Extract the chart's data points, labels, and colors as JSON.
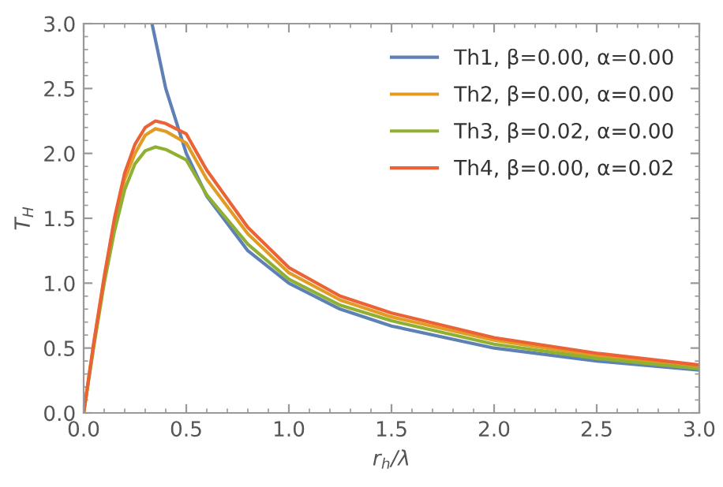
{
  "chart_data": {
    "type": "line",
    "xlabel": "r$_{h}$/λ",
    "ylabel": "T$_{H}$",
    "xlim": [
      0,
      3
    ],
    "ylim": [
      0,
      3
    ],
    "xticks": [
      {
        "value": 0,
        "label": "0.0"
      },
      {
        "value": 0.5,
        "label": "0.5"
      },
      {
        "value": 1,
        "label": "1.0"
      },
      {
        "value": 1.5,
        "label": "1.5"
      },
      {
        "value": 2,
        "label": "2.0"
      },
      {
        "value": 2.5,
        "label": "2.5"
      },
      {
        "value": 3,
        "label": "3.0"
      }
    ],
    "yticks": [
      {
        "value": 0,
        "label": "0.0"
      },
      {
        "value": 0.5,
        "label": "0.5"
      },
      {
        "value": 1,
        "label": "1.0"
      },
      {
        "value": 1.5,
        "label": "1.5"
      },
      {
        "value": 2,
        "label": "2.0"
      },
      {
        "value": 2.5,
        "label": "2.5"
      },
      {
        "value": 3,
        "label": "3.0"
      }
    ],
    "legend": "top right",
    "grid": false,
    "series": [
      {
        "name": "Th1, β=0.00, α=0.00",
        "color": "#5e81b5",
        "x": [
          0.333,
          0.4,
          0.5,
          0.6,
          0.8,
          1.0,
          1.25,
          1.5,
          2.0,
          2.5,
          3.0
        ],
        "values": [
          3.0,
          2.5,
          2.0,
          1.67,
          1.25,
          1.0,
          0.8,
          0.67,
          0.5,
          0.4,
          0.33
        ]
      },
      {
        "name": "Th2, β=0.00, α=0.00",
        "color": "#e19c24",
        "x": [
          0,
          0.05,
          0.1,
          0.15,
          0.2,
          0.25,
          0.3,
          0.35,
          0.4,
          0.5,
          0.6,
          0.8,
          1.0,
          1.25,
          1.5,
          2.0,
          2.5,
          3.0
        ],
        "values": [
          0,
          0.54,
          1.03,
          1.47,
          1.8,
          2.0,
          2.14,
          2.19,
          2.17,
          2.08,
          1.8,
          1.38,
          1.08,
          0.87,
          0.74,
          0.56,
          0.44,
          0.36
        ]
      },
      {
        "name": "Th3, β=0.02, α=0.00",
        "color": "#8fb032",
        "x": [
          0,
          0.05,
          0.1,
          0.15,
          0.2,
          0.25,
          0.3,
          0.35,
          0.4,
          0.5,
          0.6,
          0.8,
          1.0,
          1.25,
          1.5,
          2.0,
          2.5,
          3.0
        ],
        "values": [
          0,
          0.52,
          1.0,
          1.4,
          1.72,
          1.92,
          2.02,
          2.05,
          2.03,
          1.95,
          1.68,
          1.3,
          1.03,
          0.83,
          0.71,
          0.53,
          0.42,
          0.34
        ]
      },
      {
        "name": "Th4, β=0.00, α=0.02",
        "color": "#eb6235",
        "x": [
          0,
          0.05,
          0.1,
          0.15,
          0.2,
          0.25,
          0.3,
          0.35,
          0.4,
          0.5,
          0.6,
          0.8,
          1.0,
          1.25,
          1.5,
          2.0,
          2.5,
          3.0
        ],
        "values": [
          0,
          0.55,
          1.05,
          1.5,
          1.85,
          2.07,
          2.2,
          2.25,
          2.23,
          2.15,
          1.87,
          1.43,
          1.12,
          0.9,
          0.77,
          0.58,
          0.46,
          0.37
        ]
      }
    ]
  }
}
